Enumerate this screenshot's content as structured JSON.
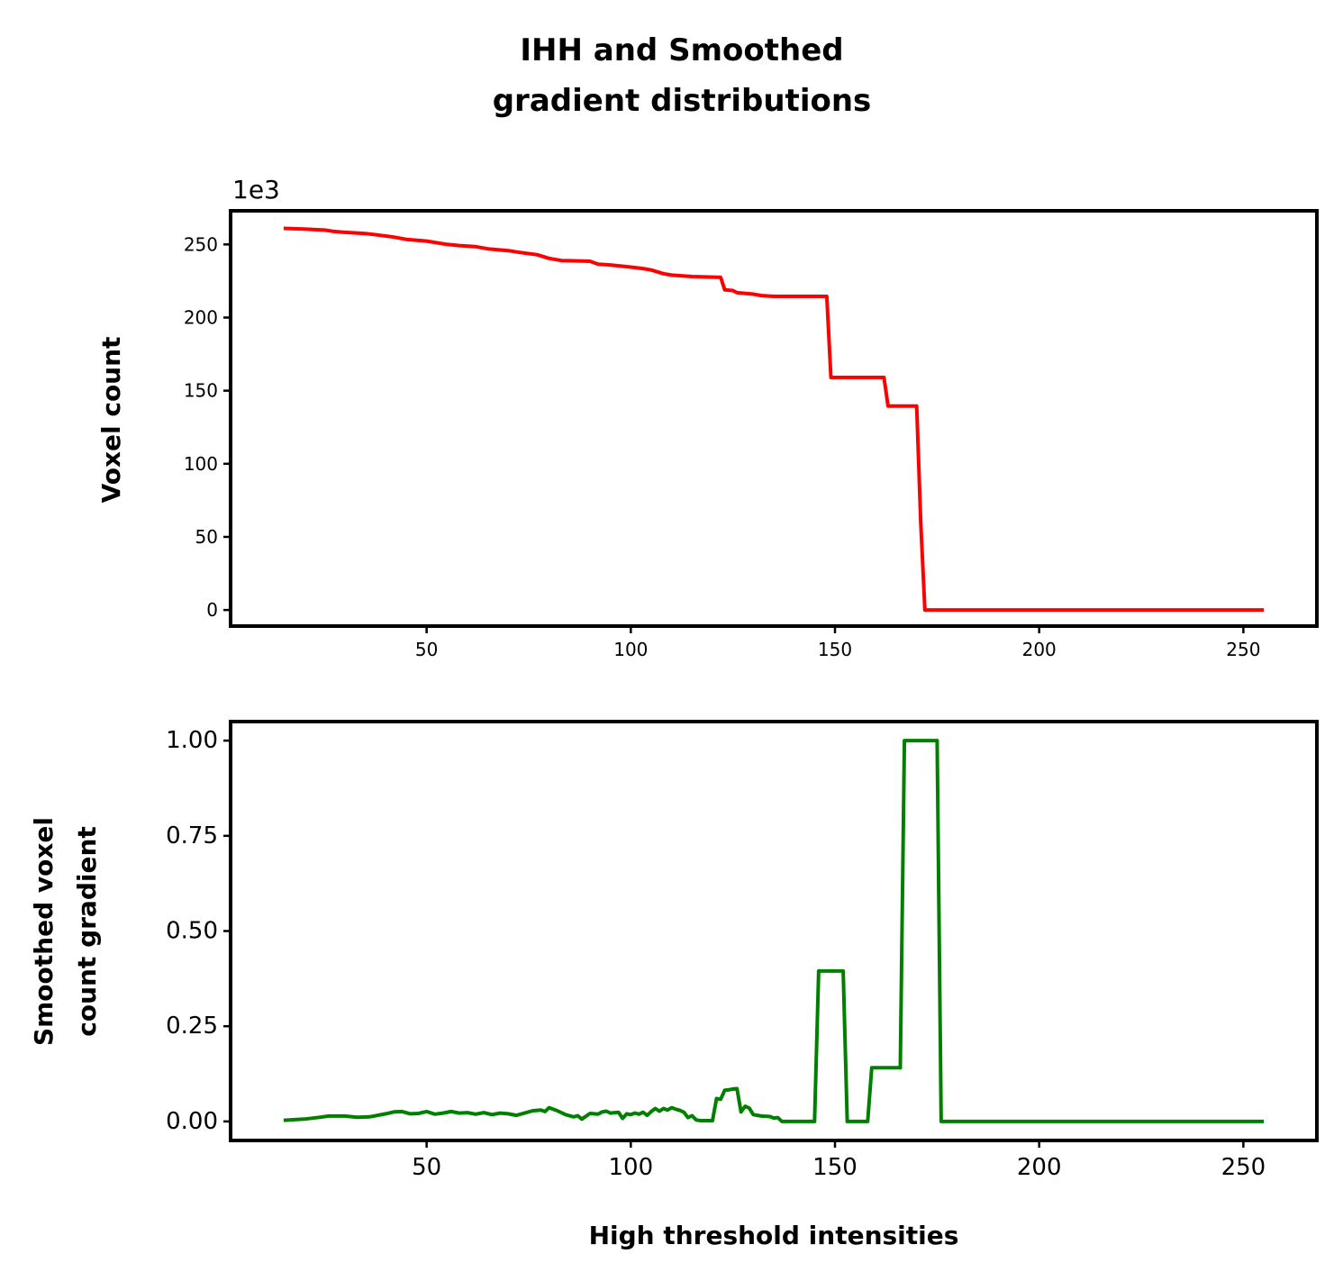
{
  "figure": {
    "title_line1": "IHH and Smoothed",
    "title_line2": "gradient distributions"
  },
  "chart_data": [
    {
      "type": "line",
      "name": "ihh",
      "title": "",
      "xlabel": "",
      "ylabel": "Voxel count",
      "y_offset_label": "1e3",
      "xlim": [
        2,
        268
      ],
      "ylim": [
        -11,
        273
      ],
      "xticks": [
        50,
        100,
        150,
        200,
        250
      ],
      "yticks": [
        0,
        50,
        100,
        150,
        200,
        250
      ],
      "color": "#ff0000",
      "grid": false,
      "series": [
        {
          "x": [
            15,
            20,
            25,
            27,
            30,
            35,
            38,
            42,
            45,
            50,
            55,
            58,
            62,
            65,
            70,
            73,
            77,
            80,
            83,
            90,
            92,
            95,
            100,
            103,
            105,
            108,
            110,
            115,
            122,
            123,
            125,
            126,
            130,
            132,
            135,
            148,
            149,
            155,
            162,
            163,
            165,
            170,
            171,
            172,
            180,
            200,
            220,
            240,
            255
          ],
          "y": [
            261,
            260.5,
            259.8,
            259,
            258.3,
            257.5,
            256.5,
            255,
            253.5,
            252.3,
            250,
            249.2,
            248.5,
            247,
            245.8,
            244.5,
            243,
            240.5,
            239,
            238.5,
            236.5,
            236,
            234.5,
            233.5,
            232.5,
            230,
            229,
            228,
            227.5,
            219,
            218.5,
            217,
            216,
            215,
            214.5,
            214.5,
            159,
            159,
            159,
            139.5,
            139.5,
            139.5,
            60,
            0,
            0,
            0,
            0,
            0,
            0
          ]
        }
      ]
    },
    {
      "type": "line",
      "name": "smoothed-gradient",
      "title": "",
      "xlabel": "High threshold intensities",
      "ylabel_line1": "Smoothed voxel",
      "ylabel_line2": "count gradient",
      "xlim": [
        2,
        268
      ],
      "ylim": [
        -0.05,
        1.05
      ],
      "xticks": [
        50,
        100,
        150,
        200,
        250
      ],
      "yticks": [
        0.0,
        0.25,
        0.5,
        0.75,
        1.0
      ],
      "ytick_labels": [
        "0.00",
        "0.25",
        "0.50",
        "0.75",
        "1.00"
      ],
      "color": "#008000",
      "grid": false,
      "series": [
        {
          "x": [
            15,
            20,
            24,
            26,
            30,
            33,
            36,
            40,
            42,
            44,
            46,
            48,
            50,
            52,
            54,
            56,
            58,
            60,
            62,
            64,
            66,
            68,
            70,
            72,
            74,
            76,
            78,
            79,
            80,
            82,
            84,
            86,
            87,
            88,
            90,
            92,
            93,
            94,
            95,
            97,
            98,
            99,
            100,
            101,
            102,
            103,
            104,
            105,
            106,
            107,
            108,
            109,
            110,
            111,
            112,
            113,
            114,
            115,
            116,
            117,
            118,
            119,
            120,
            121,
            122,
            123,
            124,
            125,
            126,
            127,
            128,
            129,
            130,
            131,
            132,
            134,
            135,
            136,
            137,
            140,
            145,
            146,
            147,
            148,
            150,
            152,
            153,
            154,
            156,
            158,
            159,
            160,
            162,
            164,
            166,
            167,
            168,
            170,
            172,
            174,
            175,
            176,
            177,
            180,
            200,
            220,
            240,
            255
          ],
          "y": [
            0.003,
            0.006,
            0.011,
            0.014,
            0.014,
            0.011,
            0.012,
            0.02,
            0.025,
            0.026,
            0.02,
            0.021,
            0.026,
            0.019,
            0.022,
            0.026,
            0.022,
            0.023,
            0.019,
            0.023,
            0.018,
            0.022,
            0.02,
            0.016,
            0.022,
            0.028,
            0.03,
            0.026,
            0.036,
            0.028,
            0.018,
            0.012,
            0.015,
            0.006,
            0.021,
            0.019,
            0.025,
            0.027,
            0.022,
            0.024,
            0.008,
            0.02,
            0.018,
            0.022,
            0.019,
            0.024,
            0.016,
            0.026,
            0.034,
            0.027,
            0.034,
            0.03,
            0.036,
            0.032,
            0.029,
            0.024,
            0.01,
            0.015,
            0.004,
            0.002,
            0.002,
            0.002,
            0.002,
            0.06,
            0.058,
            0.082,
            0.083,
            0.085,
            0.086,
            0.025,
            0.04,
            0.035,
            0.018,
            0.016,
            0.014,
            0.013,
            0.009,
            0.01,
            0.0,
            0.0,
            0.0,
            0.395,
            0.395,
            0.395,
            0.395,
            0.395,
            0.0,
            0.0,
            0.0,
            0.0,
            0.141,
            0.141,
            0.141,
            0.141,
            0.141,
            1.0,
            1.0,
            1.0,
            1.0,
            1.0,
            1.0,
            0.0,
            0.0,
            0.0,
            0.0,
            0.0,
            0.0,
            0.0
          ]
        }
      ]
    }
  ]
}
